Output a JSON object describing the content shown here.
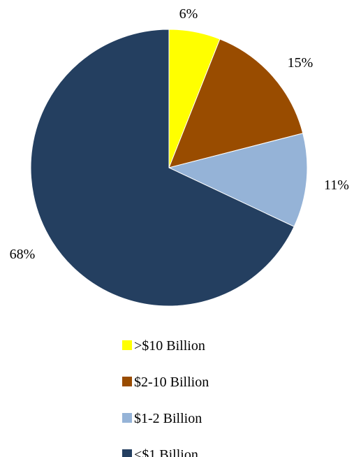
{
  "chart_data": {
    "type": "pie",
    "title": "",
    "legend_position": "bottom",
    "start_angle_deg": 0,
    "direction": "clockwise",
    "slices": [
      {
        "label": ">$10 Billion",
        "value": 6,
        "value_label": "6%",
        "color": "#ffff00"
      },
      {
        "label": "$2-10 Billion",
        "value": 15,
        "value_label": "15%",
        "color": "#994c00"
      },
      {
        "label": "$1-2 Billion",
        "value": 11,
        "value_label": "11%",
        "color": "#95b3d7"
      },
      {
        "label": "<$1 Billion",
        "value": 68,
        "value_label": "68%",
        "color": "#243f60"
      }
    ]
  }
}
